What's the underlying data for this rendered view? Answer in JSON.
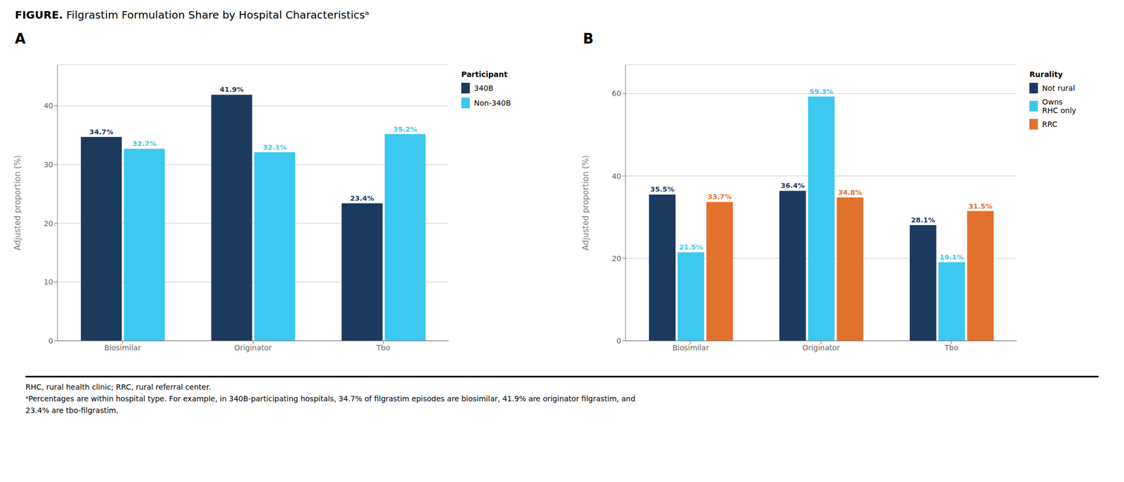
{
  "title": "FIGURE.",
  "subtitle": "Filgrastim Formulation Share by Hospital Characteristicsᵃ",
  "annotations": [
    "RHC, rural health clinic; RRC, rural referral center.",
    "ᵃPercentages are within hospital type. For example, in 340B-participating hospitals, 34.7% of filgrastim episodes are biosimilar, 41.9% are originator filgrastim, and",
    "23.4% are tbo-filgrastim."
  ],
  "chart_data": [
    {
      "type": "bar",
      "title": "A",
      "categories": [
        "Biosimilar",
        "Originator",
        "Tbo"
      ],
      "series": [
        {
          "name": "340B",
          "color": "#1b3a5e",
          "values": [
            34.7,
            41.9,
            23.4
          ],
          "value_labels": [
            "34.7%",
            "41.9%",
            "23.4%"
          ]
        },
        {
          "name": "Non-340B",
          "color": "#3cc8ef",
          "values": [
            32.7,
            32.1,
            35.2
          ],
          "value_labels": [
            "32.7%",
            "32.1%",
            "35.2%"
          ]
        }
      ],
      "y_label": "Adjusted proportion (%)",
      "ylim": [
        0,
        47
      ],
      "yticks": [
        0,
        10,
        20,
        30,
        40
      ],
      "legend_title": "Participant",
      "legend": "right",
      "grid": true,
      "data_labels": true
    },
    {
      "type": "bar",
      "title": "B",
      "categories": [
        "Biosimilar",
        "Originator",
        "Tbo"
      ],
      "series": [
        {
          "name": "Not rural",
          "color": "#1b3a5e",
          "values": [
            35.5,
            36.4,
            28.1
          ],
          "value_labels": [
            "35.5%",
            "36.4%",
            "28.1%"
          ]
        },
        {
          "name": "Owns\nRHC only",
          "color": "#3cc8ef",
          "values": [
            21.5,
            59.3,
            19.1
          ],
          "value_labels": [
            "21.5%",
            "59.3%",
            "19.1%"
          ]
        },
        {
          "name": "RRC",
          "color": "#e2722b",
          "values": [
            33.7,
            34.8,
            31.5
          ],
          "value_labels": [
            "33.7%",
            "34.8%",
            "31.5%"
          ]
        }
      ],
      "y_label": "Adjusted proportion (%)",
      "ylim": [
        0,
        67
      ],
      "yticks": [
        0,
        20,
        40,
        60
      ],
      "legend_title": "Rurality",
      "legend": "right",
      "grid": true,
      "data_labels": true
    }
  ]
}
